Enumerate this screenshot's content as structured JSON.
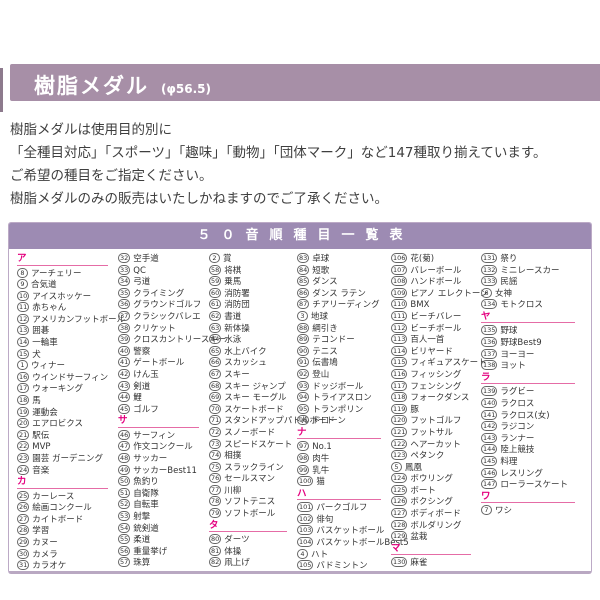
{
  "header": {
    "title": "樹脂メダル",
    "size_note": "(φ56.5)"
  },
  "description": {
    "lines": [
      "樹脂メダルは使用目的別に",
      "「全種目対応」「スポーツ」「趣味」「動物」「団体マーク」など147種取り揃えています。",
      "ご希望の種目をご指定ください。",
      "樹脂メダルのみの販売はいたしかねますのでご了承ください。"
    ]
  },
  "colors": {
    "header_bar": "#a78fa7",
    "table_header_bar": "#9d8bb3",
    "section_accent": "#e4007f",
    "table_border": "#bcaac6"
  },
  "table": {
    "title": "５０音順種目一覧表",
    "columns": [
      [
        {
          "section": "ア",
          "items": [
            {
              "n": 8,
              "t": "アーチェリー"
            },
            {
              "n": 9,
              "t": "合気道"
            },
            {
              "n": 10,
              "t": "アイスホッケー"
            },
            {
              "n": 11,
              "t": "赤ちゃん"
            },
            {
              "n": 12,
              "t": "アメリカンフットボール"
            },
            {
              "n": 13,
              "t": "囲碁"
            },
            {
              "n": 14,
              "t": "一輪車"
            },
            {
              "n": 15,
              "t": "犬"
            },
            {
              "n": 1,
              "t": "ウィナー"
            },
            {
              "n": 16,
              "t": "ウインドサーフィン"
            },
            {
              "n": 17,
              "t": "ウォーキング"
            },
            {
              "n": 18,
              "t": "馬"
            },
            {
              "n": 19,
              "t": "運動会"
            },
            {
              "n": 20,
              "t": "エアロビクス"
            },
            {
              "n": 21,
              "t": "駅伝"
            },
            {
              "n": 22,
              "t": "MVP"
            },
            {
              "n": 23,
              "t": "園芸 ガーデニング"
            },
            {
              "n": 24,
              "t": "音楽"
            }
          ]
        },
        {
          "section": "カ",
          "items": [
            {
              "n": 25,
              "t": "カーレース"
            },
            {
              "n": 26,
              "t": "絵画コンクール"
            },
            {
              "n": 27,
              "t": "カイトボード"
            },
            {
              "n": 28,
              "t": "学習"
            },
            {
              "n": 29,
              "t": "カヌー"
            },
            {
              "n": 30,
              "t": "カメラ"
            },
            {
              "n": 31,
              "t": "カラオケ"
            }
          ]
        }
      ],
      [
        {
          "section": "",
          "items": [
            {
              "n": 32,
              "t": "空手道"
            },
            {
              "n": 33,
              "t": "QC"
            },
            {
              "n": 34,
              "t": "弓道"
            },
            {
              "n": 35,
              "t": "クライミング"
            },
            {
              "n": 36,
              "t": "グラウンドゴルフ"
            },
            {
              "n": 37,
              "t": "クラシックバレエ"
            },
            {
              "n": 38,
              "t": "クリケット"
            },
            {
              "n": 39,
              "t": "クロスカントリースキー"
            },
            {
              "n": 40,
              "t": "警察"
            },
            {
              "n": 41,
              "t": "ゲートボール"
            },
            {
              "n": 42,
              "t": "けん玉"
            },
            {
              "n": 43,
              "t": "剣道"
            },
            {
              "n": 44,
              "t": "鯉"
            },
            {
              "n": 45,
              "t": "ゴルフ"
            }
          ]
        },
        {
          "section": "サ",
          "items": [
            {
              "n": 46,
              "t": "サーフィン"
            },
            {
              "n": 47,
              "t": "作文コンクール"
            },
            {
              "n": 48,
              "t": "サッカー"
            },
            {
              "n": 49,
              "t": "サッカーBest11"
            },
            {
              "n": 50,
              "t": "魚釣り"
            },
            {
              "n": 51,
              "t": "自衛隊"
            },
            {
              "n": 52,
              "t": "自転車"
            },
            {
              "n": 53,
              "t": "射撃"
            },
            {
              "n": 54,
              "t": "銃剣道"
            },
            {
              "n": 55,
              "t": "柔道"
            },
            {
              "n": 56,
              "t": "重量挙げ"
            },
            {
              "n": 57,
              "t": "珠算"
            }
          ]
        }
      ],
      [
        {
          "section": "",
          "items": [
            {
              "n": 2,
              "t": "賞"
            },
            {
              "n": 58,
              "t": "将棋"
            },
            {
              "n": 59,
              "t": "乗馬"
            },
            {
              "n": 60,
              "t": "消防署"
            },
            {
              "n": 61,
              "t": "消防団"
            },
            {
              "n": 62,
              "t": "書道"
            },
            {
              "n": 63,
              "t": "新体操"
            },
            {
              "n": 64,
              "t": "水泳"
            },
            {
              "n": 65,
              "t": "水上バイク"
            },
            {
              "n": 66,
              "t": "スカッシュ"
            },
            {
              "n": 67,
              "t": "スキー"
            },
            {
              "n": 68,
              "t": "スキー ジャンプ"
            },
            {
              "n": 69,
              "t": "スキー モーグル"
            },
            {
              "n": 70,
              "t": "スケートボード"
            },
            {
              "n": 71,
              "t": "スタンドアップパドルボード"
            },
            {
              "n": 72,
              "t": "スノーボード"
            },
            {
              "n": 73,
              "t": "スピードスケート"
            },
            {
              "n": 74,
              "t": "相撲"
            },
            {
              "n": 75,
              "t": "スラックライン"
            },
            {
              "n": 76,
              "t": "セールスマン"
            },
            {
              "n": 77,
              "t": "川柳"
            },
            {
              "n": 78,
              "t": "ソフトテニス"
            },
            {
              "n": 79,
              "t": "ソフトボール"
            }
          ]
        },
        {
          "section": "タ",
          "items": [
            {
              "n": 80,
              "t": "ダーツ"
            },
            {
              "n": 81,
              "t": "体操"
            },
            {
              "n": 82,
              "t": "凧上げ"
            }
          ]
        }
      ],
      [
        {
          "section": "",
          "items": [
            {
              "n": 83,
              "t": "卓球"
            },
            {
              "n": 84,
              "t": "短歌"
            },
            {
              "n": 85,
              "t": "ダンス"
            },
            {
              "n": 86,
              "t": "ダンス ラテン"
            },
            {
              "n": 87,
              "t": "チアリーディング"
            },
            {
              "n": 3,
              "t": "地球"
            },
            {
              "n": 88,
              "t": "綱引き"
            },
            {
              "n": 89,
              "t": "テコンドー"
            },
            {
              "n": 90,
              "t": "テニス"
            },
            {
              "n": 91,
              "t": "伝書鳩"
            },
            {
              "n": 92,
              "t": "登山"
            },
            {
              "n": 93,
              "t": "ドッジボール"
            },
            {
              "n": 94,
              "t": "トライアスロン"
            },
            {
              "n": 95,
              "t": "トランポリン"
            },
            {
              "n": 96,
              "t": "ドローン"
            }
          ]
        },
        {
          "section": "ナ",
          "items": [
            {
              "n": 97,
              "t": "No.1"
            },
            {
              "n": 98,
              "t": "肉牛"
            },
            {
              "n": 99,
              "t": "乳牛"
            },
            {
              "n": 100,
              "t": "猫"
            }
          ]
        },
        {
          "section": "ハ",
          "items": [
            {
              "n": 101,
              "t": "パークゴルフ"
            },
            {
              "n": 102,
              "t": "俳句"
            },
            {
              "n": 103,
              "t": "バスケットボール"
            },
            {
              "n": 104,
              "t": "バスケットボールBest5"
            },
            {
              "n": 4,
              "t": "ハト"
            },
            {
              "n": 105,
              "t": "バドミントン"
            }
          ]
        }
      ],
      [
        {
          "section": "",
          "items": [
            {
              "n": 106,
              "t": "花(菊)"
            },
            {
              "n": 107,
              "t": "バレーボール"
            },
            {
              "n": 108,
              "t": "ハンドボール"
            },
            {
              "n": 109,
              "t": "ピアノ エレクトーン"
            },
            {
              "n": 110,
              "t": "BMX"
            },
            {
              "n": 111,
              "t": "ビーチバレー"
            },
            {
              "n": 112,
              "t": "ビーチボール"
            },
            {
              "n": 113,
              "t": "百人一首"
            },
            {
              "n": 114,
              "t": "ビリヤード"
            },
            {
              "n": 115,
              "t": "フィギュアスケート"
            },
            {
              "n": 116,
              "t": "フィッシング"
            },
            {
              "n": 117,
              "t": "フェンシング"
            },
            {
              "n": 118,
              "t": "フォークダンス"
            },
            {
              "n": 119,
              "t": "豚"
            },
            {
              "n": 120,
              "t": "フットゴルフ"
            },
            {
              "n": 121,
              "t": "フットサル"
            },
            {
              "n": 122,
              "t": "ヘアーカット"
            },
            {
              "n": 123,
              "t": "ペタンク"
            },
            {
              "n": 5,
              "t": "鳳凰"
            },
            {
              "n": 124,
              "t": "ボウリング"
            },
            {
              "n": 125,
              "t": "ボート"
            },
            {
              "n": 126,
              "t": "ボクシング"
            },
            {
              "n": 127,
              "t": "ボディボード"
            },
            {
              "n": 128,
              "t": "ボルダリング"
            },
            {
              "n": 129,
              "t": "盆栽"
            }
          ]
        },
        {
          "section": "マ",
          "items": [
            {
              "n": 130,
              "t": "麻雀"
            }
          ]
        }
      ],
      [
        {
          "section": "",
          "items": [
            {
              "n": 131,
              "t": "祭り"
            },
            {
              "n": 132,
              "t": "ミニレースカー"
            },
            {
              "n": 133,
              "t": "民謡"
            },
            {
              "n": 6,
              "t": "女神"
            },
            {
              "n": 134,
              "t": "モトクロス"
            }
          ]
        },
        {
          "section": "ヤ",
          "items": [
            {
              "n": 135,
              "t": "野球"
            },
            {
              "n": 136,
              "t": "野球Best9"
            },
            {
              "n": 137,
              "t": "ヨーヨー"
            },
            {
              "n": 138,
              "t": "ヨット"
            }
          ]
        },
        {
          "section": "ラ",
          "items": [
            {
              "n": 139,
              "t": "ラグビー"
            },
            {
              "n": 140,
              "t": "ラクロス"
            },
            {
              "n": 141,
              "t": "ラクロス(女)"
            },
            {
              "n": 142,
              "t": "ラジコン"
            },
            {
              "n": 143,
              "t": "ランナー"
            },
            {
              "n": 144,
              "t": "陸上競技"
            },
            {
              "n": 145,
              "t": "料理"
            },
            {
              "n": 146,
              "t": "レスリング"
            },
            {
              "n": 147,
              "t": "ローラースケート"
            }
          ]
        },
        {
          "section": "ワ",
          "items": [
            {
              "n": 7,
              "t": "ワシ"
            }
          ]
        }
      ]
    ]
  }
}
